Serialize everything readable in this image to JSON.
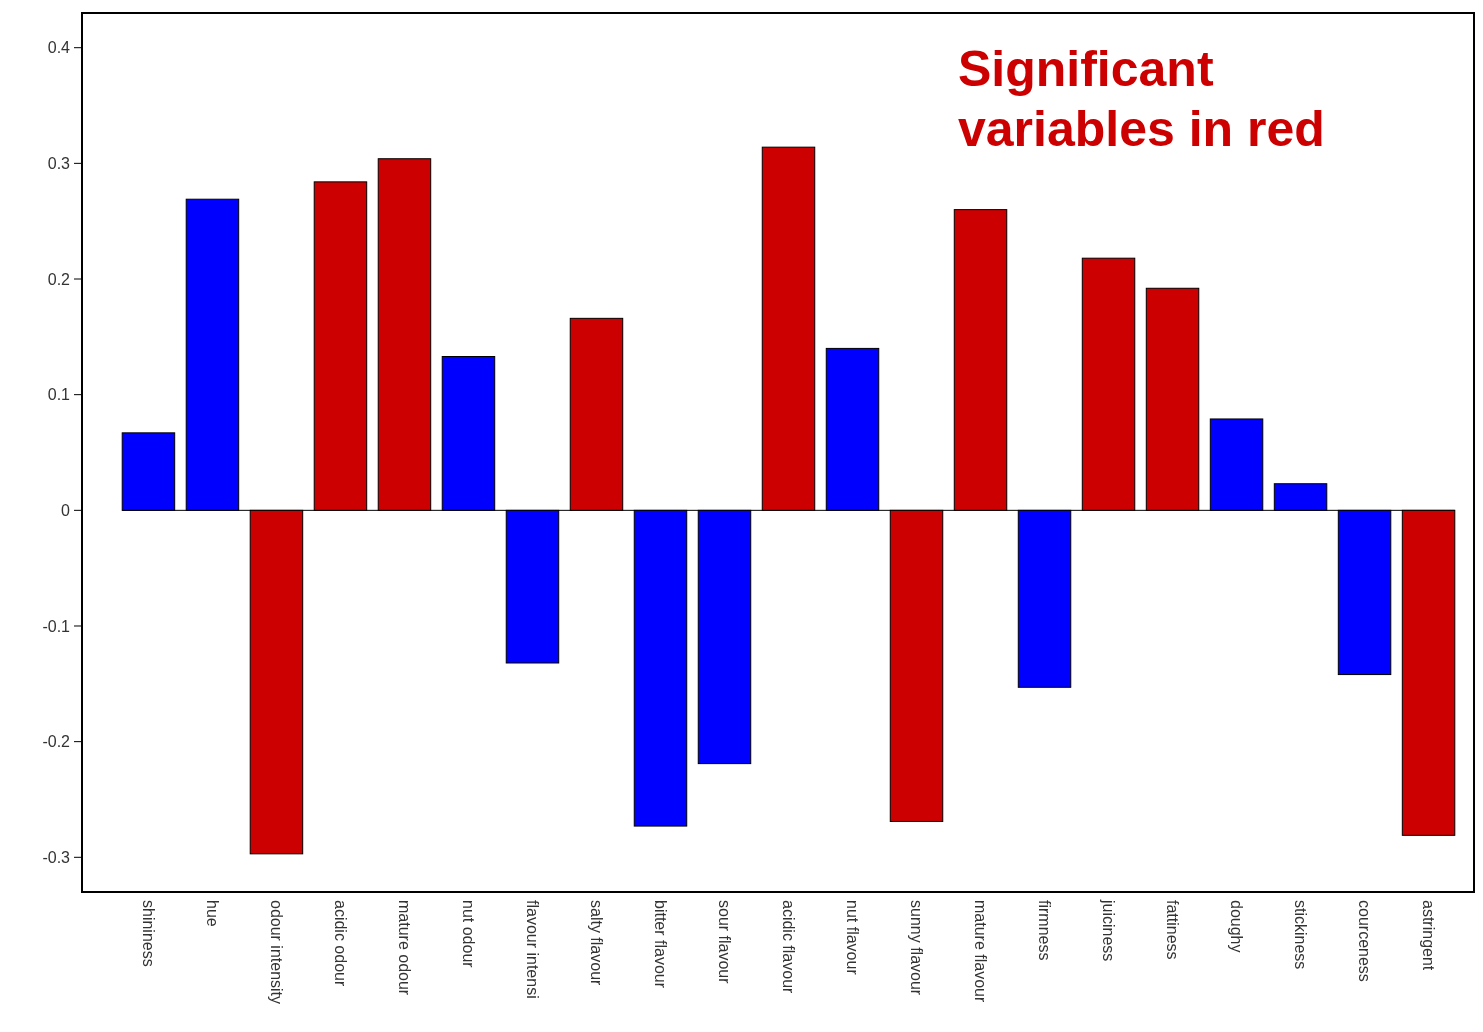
{
  "chart_data": {
    "type": "bar",
    "annotations": [
      "Significant variables in red"
    ],
    "categories": [
      "shininess",
      "hue",
      "odour intensity",
      "acidic odour",
      "mature odour",
      "nut odour",
      "flavour intensi",
      "salty flavour",
      "bitter flavour",
      "sour flavour",
      "acidic flavour",
      "nut flavour",
      "sunny flavour",
      "mature flavour",
      "firmness",
      "juiciness",
      "fattiness",
      "doughy",
      "stickiness",
      "courceness",
      "astringent"
    ],
    "values": [
      0.067,
      0.269,
      -0.297,
      0.284,
      0.304,
      0.133,
      -0.132,
      0.166,
      -0.273,
      -0.219,
      0.314,
      0.14,
      -0.269,
      0.26,
      -0.153,
      0.218,
      0.192,
      0.079,
      0.023,
      -0.142,
      -0.281
    ],
    "colors": [
      "#0000ff",
      "#0000ff",
      "#cc0000",
      "#cc0000",
      "#cc0000",
      "#0000ff",
      "#0000ff",
      "#cc0000",
      "#0000ff",
      "#0000ff",
      "#cc0000",
      "#0000ff",
      "#cc0000",
      "#cc0000",
      "#0000ff",
      "#cc0000",
      "#cc0000",
      "#0000ff",
      "#0000ff",
      "#0000ff",
      "#cc0000"
    ],
    "ylim": [
      -0.33,
      0.43
    ],
    "yticks": [
      {
        "value": 0.4,
        "label": "0.4"
      },
      {
        "value": 0.3,
        "label": "0.3"
      },
      {
        "value": 0.2,
        "label": "0.2"
      },
      {
        "value": 0.1,
        "label": "0.1"
      },
      {
        "value": 0,
        "label": "0"
      },
      {
        "value": -0.1,
        "label": "-0.1"
      },
      {
        "value": -0.2,
        "label": "-0.2"
      },
      {
        "value": -0.3,
        "label": "-0.3"
      }
    ]
  }
}
